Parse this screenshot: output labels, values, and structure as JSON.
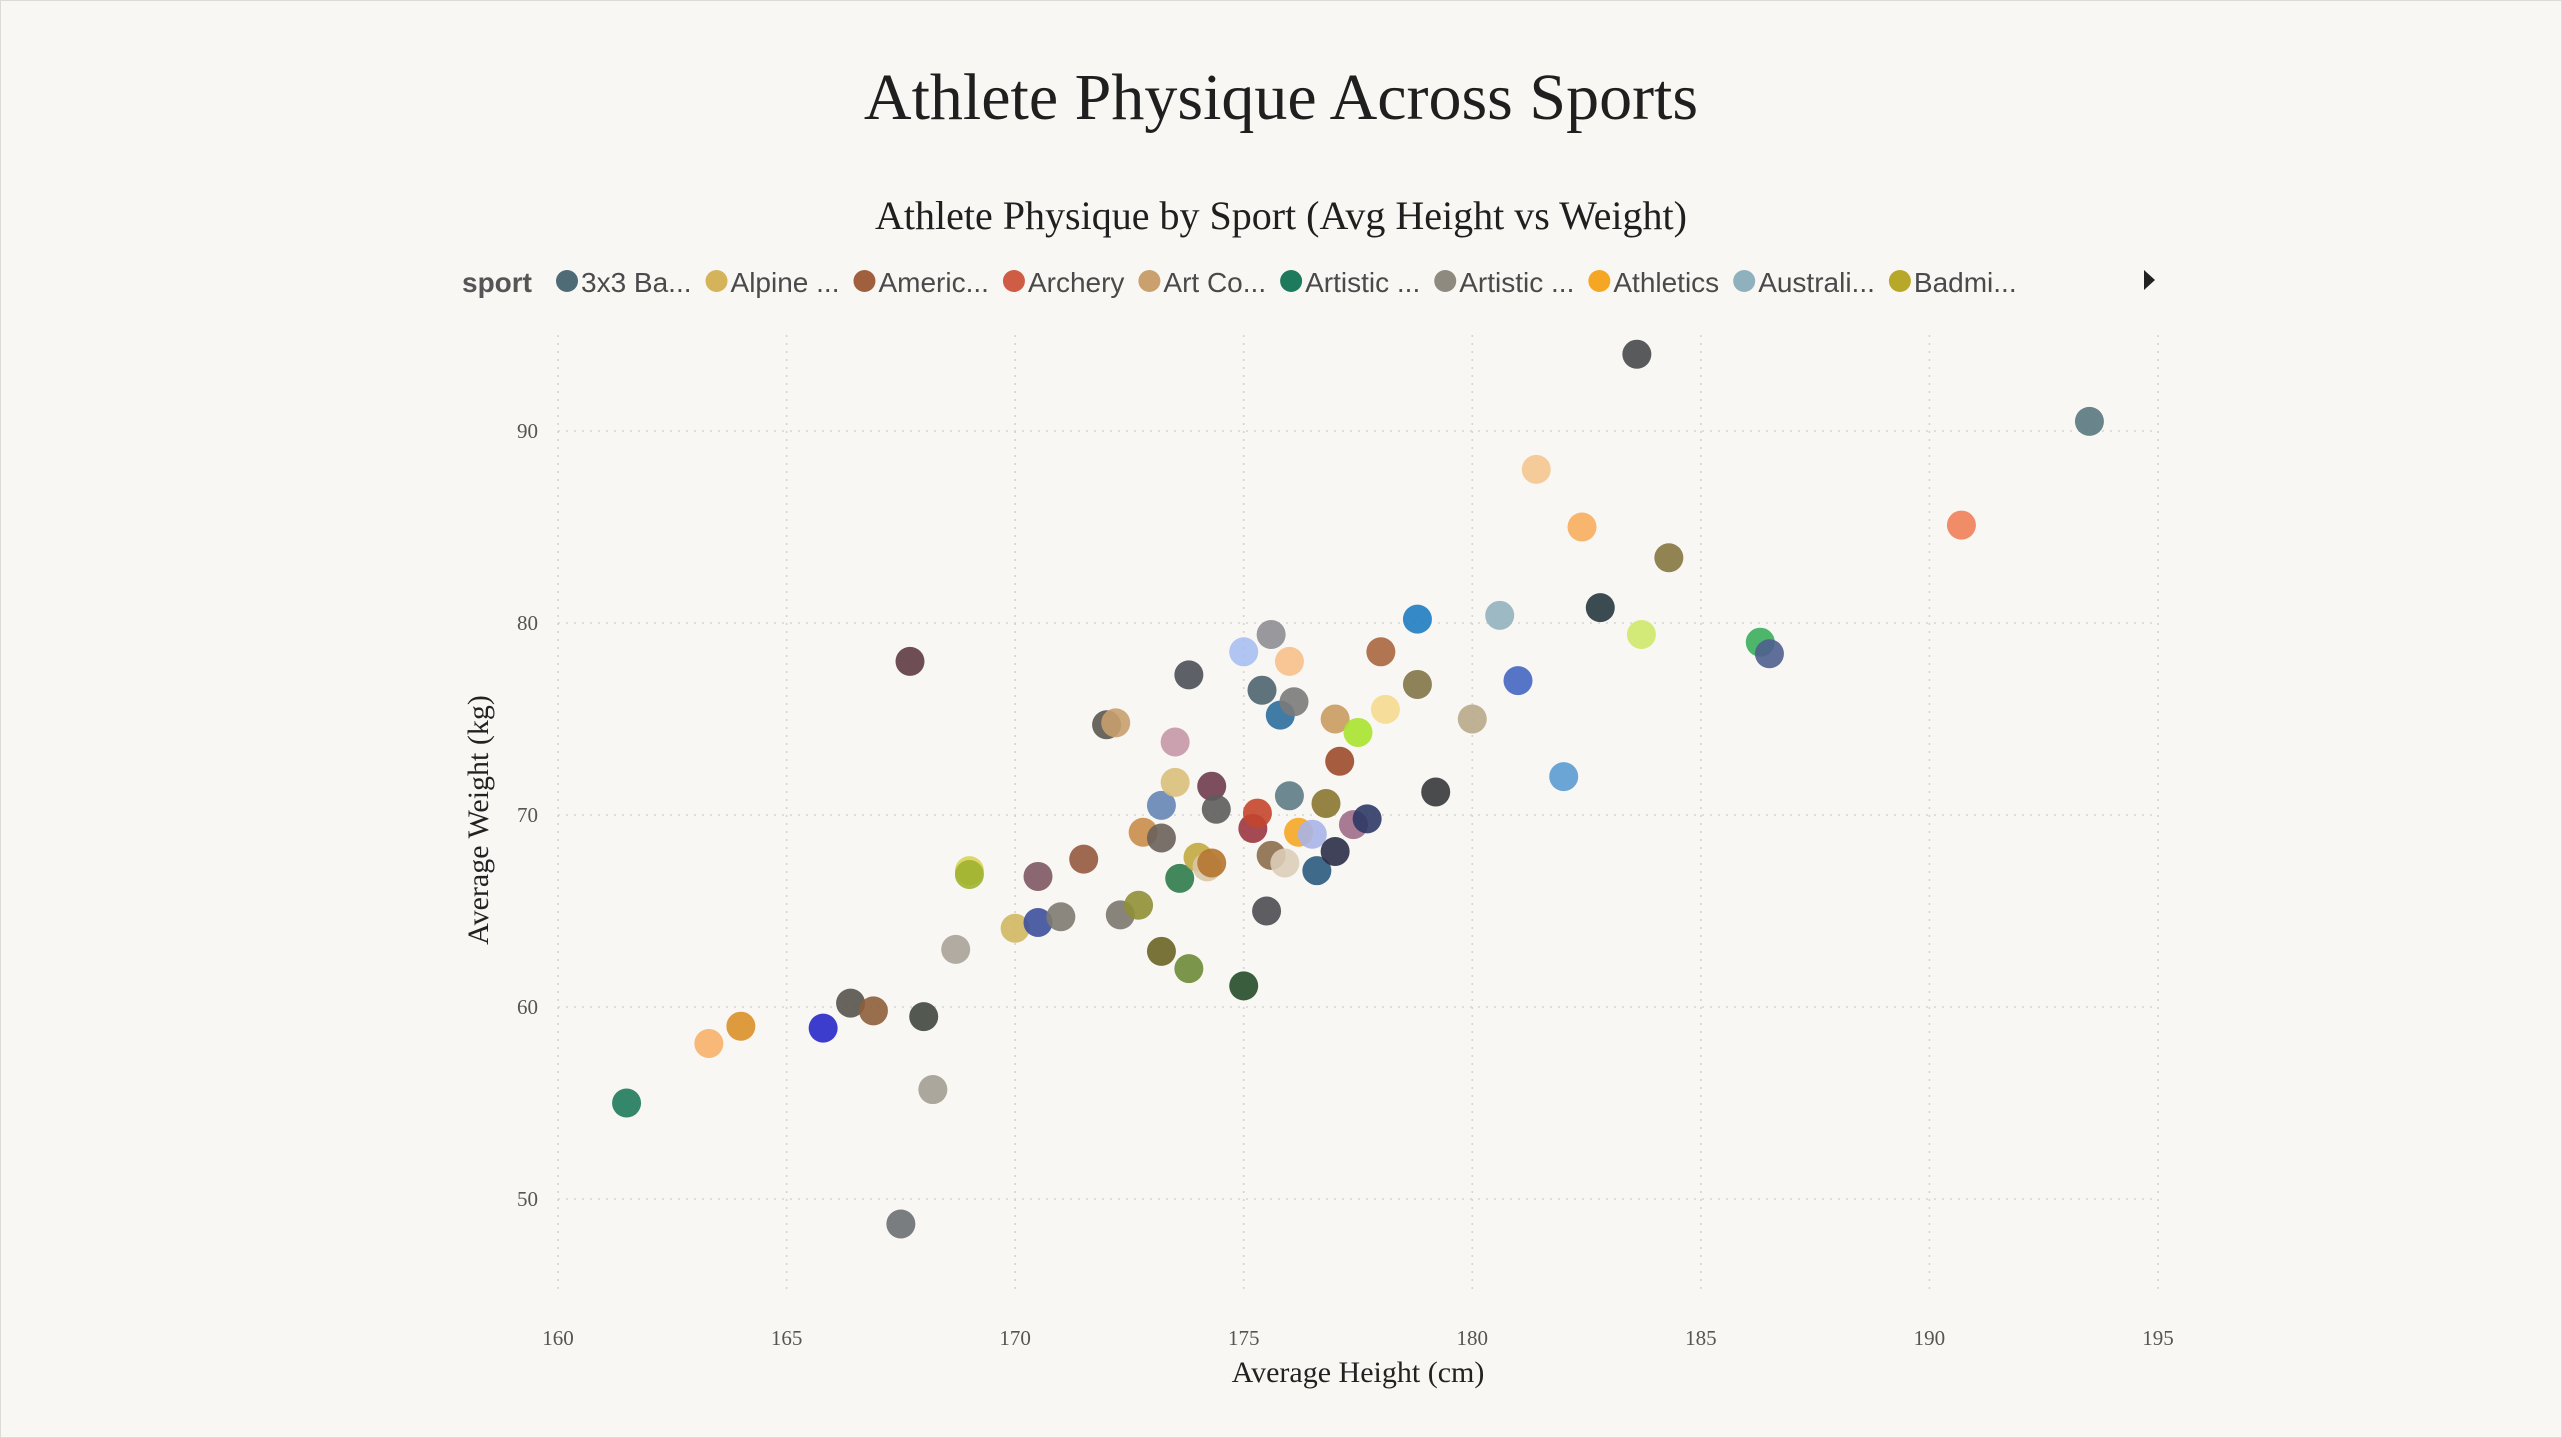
{
  "page": {
    "title": "Athlete Physique Across Sports"
  },
  "chart_data": {
    "type": "scatter",
    "title": "Athlete Physique by Sport (Avg Height vs Weight)",
    "xlabel": "Average Height (cm)",
    "ylabel": "Average Weight (kg)",
    "xlim": [
      160,
      195
    ],
    "ylim": [
      45,
      95
    ],
    "x_ticks": [
      160,
      165,
      170,
      175,
      180,
      185,
      190,
      195
    ],
    "y_ticks": [
      50,
      60,
      70,
      80,
      90
    ],
    "grid": true,
    "legend": {
      "title": "sport",
      "placement": "top",
      "entries": [
        {
          "label": "3x3 Ba...",
          "color": "#4f6b75"
        },
        {
          "label": "Alpine ...",
          "color": "#d4b35a"
        },
        {
          "label": "Americ...",
          "color": "#a0603d"
        },
        {
          "label": "Archery",
          "color": "#cf5c44"
        },
        {
          "label": "Art Co...",
          "color": "#c9a06e"
        },
        {
          "label": "Artistic ...",
          "color": "#1e7a5c"
        },
        {
          "label": "Artistic ...",
          "color": "#8e8a80"
        },
        {
          "label": "Athletics",
          "color": "#f5a623"
        },
        {
          "label": "Australi...",
          "color": "#8fb0bd"
        },
        {
          "label": "Badmi...",
          "color": "#b8a829"
        }
      ],
      "has_more_arrow": true
    },
    "points": [
      {
        "x": 161.5,
        "y": 55.0,
        "color": "#1e7a5c"
      },
      {
        "x": 163.3,
        "y": 58.1,
        "color": "#f6b06a"
      },
      {
        "x": 164.0,
        "y": 59.0,
        "color": "#d9902a"
      },
      {
        "x": 165.8,
        "y": 58.9,
        "color": "#2727c9"
      },
      {
        "x": 166.4,
        "y": 60.2,
        "color": "#55534d"
      },
      {
        "x": 166.9,
        "y": 59.8,
        "color": "#8d5e3b"
      },
      {
        "x": 168.0,
        "y": 59.5,
        "color": "#40473f"
      },
      {
        "x": 168.2,
        "y": 55.7,
        "color": "#a29d93"
      },
      {
        "x": 167.5,
        "y": 48.7,
        "color": "#6c6f73"
      },
      {
        "x": 167.7,
        "y": 78.0,
        "color": "#5f3a44"
      },
      {
        "x": 168.7,
        "y": 63.0,
        "color": "#a9a299"
      },
      {
        "x": 169.0,
        "y": 67.1,
        "color": "#d9d35c"
      },
      {
        "x": 169.0,
        "y": 66.9,
        "color": "#9fb22f"
      },
      {
        "x": 170.0,
        "y": 64.1,
        "color": "#d1b763"
      },
      {
        "x": 170.5,
        "y": 64.4,
        "color": "#3d4f9c"
      },
      {
        "x": 170.5,
        "y": 66.8,
        "color": "#7d5763"
      },
      {
        "x": 171.0,
        "y": 64.7,
        "color": "#7e7a72"
      },
      {
        "x": 171.5,
        "y": 67.7,
        "color": "#94583f"
      },
      {
        "x": 172.0,
        "y": 74.7,
        "color": "#5a5650"
      },
      {
        "x": 172.2,
        "y": 74.8,
        "color": "#c79f6e"
      },
      {
        "x": 172.3,
        "y": 64.8,
        "color": "#7b776f"
      },
      {
        "x": 172.7,
        "y": 65.3,
        "color": "#8f8f36"
      },
      {
        "x": 172.8,
        "y": 69.1,
        "color": "#c98c4a"
      },
      {
        "x": 173.2,
        "y": 68.8,
        "color": "#6a615a"
      },
      {
        "x": 173.2,
        "y": 62.9,
        "color": "#6a6426"
      },
      {
        "x": 173.2,
        "y": 70.5,
        "color": "#6585b5"
      },
      {
        "x": 173.5,
        "y": 71.7,
        "color": "#d9bf7c"
      },
      {
        "x": 173.5,
        "y": 73.8,
        "color": "#c797a7"
      },
      {
        "x": 173.6,
        "y": 66.7,
        "color": "#2f7a4c"
      },
      {
        "x": 173.8,
        "y": 62.0,
        "color": "#6d8a37"
      },
      {
        "x": 173.8,
        "y": 77.3,
        "color": "#4b4f58"
      },
      {
        "x": 174.0,
        "y": 67.8,
        "color": "#c2a940"
      },
      {
        "x": 174.2,
        "y": 67.3,
        "color": "#d9c8a8"
      },
      {
        "x": 174.3,
        "y": 71.5,
        "color": "#6e3b4e"
      },
      {
        "x": 174.3,
        "y": 67.5,
        "color": "#b5742f"
      },
      {
        "x": 174.4,
        "y": 70.3,
        "color": "#5c5c5c"
      },
      {
        "x": 175.0,
        "y": 61.1,
        "color": "#254d29"
      },
      {
        "x": 175.0,
        "y": 78.5,
        "color": "#a8bff2"
      },
      {
        "x": 175.2,
        "y": 69.3,
        "color": "#9b3640"
      },
      {
        "x": 175.3,
        "y": 70.1,
        "color": "#c4462d"
      },
      {
        "x": 175.4,
        "y": 76.5,
        "color": "#4e6470"
      },
      {
        "x": 175.5,
        "y": 65.0,
        "color": "#4c4d52"
      },
      {
        "x": 175.6,
        "y": 79.4,
        "color": "#8e8d92"
      },
      {
        "x": 175.6,
        "y": 67.9,
        "color": "#8c6d4c"
      },
      {
        "x": 175.8,
        "y": 75.2,
        "color": "#2c6e9e"
      },
      {
        "x": 175.9,
        "y": 67.5,
        "color": "#dccdb8"
      },
      {
        "x": 176.0,
        "y": 78.0,
        "color": "#f7bf8a"
      },
      {
        "x": 176.0,
        "y": 71.0,
        "color": "#5e7b86"
      },
      {
        "x": 176.1,
        "y": 75.9,
        "color": "#7a7a7a"
      },
      {
        "x": 176.2,
        "y": 69.1,
        "color": "#f5a623"
      },
      {
        "x": 176.5,
        "y": 69.0,
        "color": "#a8b4e8"
      },
      {
        "x": 176.6,
        "y": 67.1,
        "color": "#2a5a7d"
      },
      {
        "x": 176.8,
        "y": 70.6,
        "color": "#8a7530"
      },
      {
        "x": 177.0,
        "y": 75.0,
        "color": "#c99a60"
      },
      {
        "x": 177.0,
        "y": 68.1,
        "color": "#2b2e48"
      },
      {
        "x": 177.1,
        "y": 72.8,
        "color": "#9c4a2b"
      },
      {
        "x": 177.4,
        "y": 69.5,
        "color": "#9f6c88"
      },
      {
        "x": 177.5,
        "y": 74.3,
        "color": "#a9e32f"
      },
      {
        "x": 177.7,
        "y": 69.8,
        "color": "#2e3966"
      },
      {
        "x": 178.0,
        "y": 78.5,
        "color": "#a9663f"
      },
      {
        "x": 178.1,
        "y": 75.5,
        "color": "#f5d98f"
      },
      {
        "x": 178.8,
        "y": 80.2,
        "color": "#1f7cc2"
      },
      {
        "x": 178.8,
        "y": 76.8,
        "color": "#827447"
      },
      {
        "x": 179.2,
        "y": 71.2,
        "color": "#35373a"
      },
      {
        "x": 180.0,
        "y": 75.0,
        "color": "#b8a888"
      },
      {
        "x": 180.6,
        "y": 80.4,
        "color": "#92b3bf"
      },
      {
        "x": 181.0,
        "y": 77.0,
        "color": "#4566c2"
      },
      {
        "x": 181.4,
        "y": 88.0,
        "color": "#f4c78f"
      },
      {
        "x": 182.0,
        "y": 72.0,
        "color": "#5b9bd1"
      },
      {
        "x": 182.4,
        "y": 85.0,
        "color": "#f6ad5e"
      },
      {
        "x": 182.8,
        "y": 80.8,
        "color": "#263740"
      },
      {
        "x": 183.6,
        "y": 94.0,
        "color": "#46484a"
      },
      {
        "x": 183.7,
        "y": 79.4,
        "color": "#cfe86a"
      },
      {
        "x": 184.3,
        "y": 83.4,
        "color": "#857640"
      },
      {
        "x": 186.3,
        "y": 79.0,
        "color": "#3aae5c"
      },
      {
        "x": 186.5,
        "y": 78.4,
        "color": "#4f5f8f"
      },
      {
        "x": 190.7,
        "y": 85.1,
        "color": "#f0805a"
      },
      {
        "x": 193.5,
        "y": 90.5,
        "color": "#5a7780"
      }
    ]
  }
}
